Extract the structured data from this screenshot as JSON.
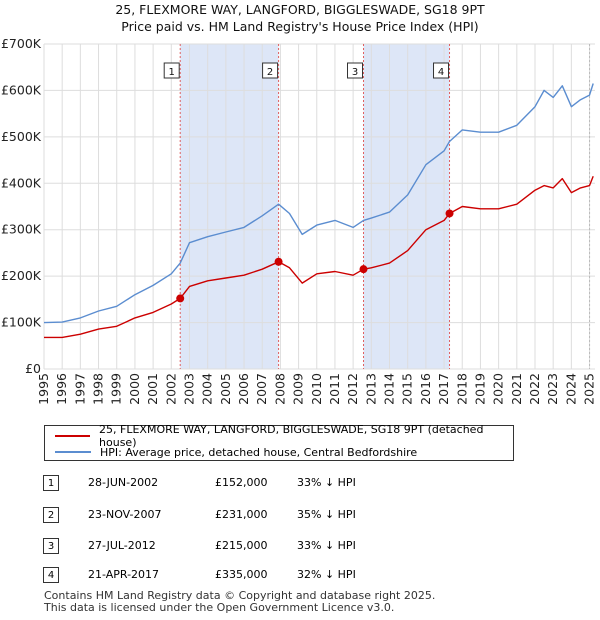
{
  "title_line1": "25, FLEXMORE WAY, LANGFORD, BIGGLESWADE, SG18 9PT",
  "title_line2": "Price paid vs. HM Land Registry's House Price Index (HPI)",
  "colors": {
    "property_line": "#cc0000",
    "hpi_line": "#5b8dd0",
    "shade": "#dde6f7",
    "marker_line": "#e06060",
    "grid": "#dddddd"
  },
  "legend": {
    "property_label": "25, FLEXMORE WAY, LANGFORD, BIGGLESWADE, SG18 9PT (detached house)",
    "hpi_label": "HPI: Average price, detached house, Central Bedfordshire"
  },
  "transactions": [
    {
      "num": "1",
      "date": "28-JUN-2002",
      "price": "£152,000",
      "hpi": "33% ↓ HPI"
    },
    {
      "num": "2",
      "date": "23-NOV-2007",
      "price": "£231,000",
      "hpi": "35% ↓ HPI"
    },
    {
      "num": "3",
      "date": "27-JUL-2012",
      "price": "£215,000",
      "hpi": "33% ↓ HPI"
    },
    {
      "num": "4",
      "date": "21-APR-2017",
      "price": "£335,000",
      "hpi": "32% ↓ HPI"
    }
  ],
  "footer": {
    "line1": "Contains HM Land Registry data © Copyright and database right 2025.",
    "line2": "This data is licensed under the Open Government Licence v3.0."
  },
  "chart_data": {
    "type": "line",
    "title": "25, FLEXMORE WAY, LANGFORD, BIGGLESWADE, SG18 9PT",
    "subtitle": "Price paid vs. HM Land Registry's House Price Index (HPI)",
    "xlabel": "",
    "ylabel": "",
    "xlim": [
      1995,
      2025.3
    ],
    "ylim": [
      0,
      700000
    ],
    "y_ticks": [
      0,
      100000,
      200000,
      300000,
      400000,
      500000,
      600000,
      700000
    ],
    "y_tick_labels": [
      "£0",
      "£100K",
      "£200K",
      "£300K",
      "£400K",
      "£500K",
      "£600K",
      "£700K"
    ],
    "x_ticks": [
      1995,
      1996,
      1997,
      1998,
      1999,
      2000,
      2001,
      2002,
      2003,
      2004,
      2005,
      2006,
      2007,
      2008,
      2009,
      2010,
      2011,
      2012,
      2013,
      2014,
      2015,
      2016,
      2017,
      2018,
      2019,
      2020,
      2021,
      2022,
      2023,
      2024,
      2025
    ],
    "x_tick_labels": [
      "1995",
      "1996",
      "1997",
      "1998",
      "1999",
      "2000",
      "2001",
      "2002",
      "2003",
      "2004",
      "2005",
      "2006",
      "2007",
      "2008",
      "2009",
      "2010",
      "2011",
      "2012",
      "2013",
      "2014",
      "2015",
      "2016",
      "2017",
      "2018",
      "2019",
      "2020",
      "2021",
      "2022",
      "2023",
      "2024",
      "2025"
    ],
    "grid": true,
    "shaded_periods": [
      [
        2002.49,
        2007.9
      ],
      [
        2012.57,
        2017.3
      ]
    ],
    "sale_markers": [
      {
        "label": "1",
        "x": 2002.49,
        "y": 152000
      },
      {
        "label": "2",
        "x": 2007.9,
        "y": 231000
      },
      {
        "label": "3",
        "x": 2012.57,
        "y": 215000
      },
      {
        "label": "4",
        "x": 2017.3,
        "y": 335000
      }
    ],
    "series": [
      {
        "name": "25, FLEXMORE WAY, LANGFORD, BIGGLESWADE, SG18 9PT (detached house)",
        "x": [
          1995,
          1996,
          1997,
          1998,
          1999,
          2000,
          2001,
          2002,
          2002.49,
          2003,
          2004,
          2005,
          2006,
          2007,
          2007.9,
          2008.5,
          2009.2,
          2010,
          2011,
          2012,
          2012.57,
          2013,
          2014,
          2015,
          2016,
          2017,
          2017.3,
          2018,
          2019,
          2020,
          2021,
          2022,
          2022.5,
          2023,
          2023.5,
          2024,
          2024.5,
          2025,
          2025.2
        ],
        "y": [
          68000,
          68000,
          75000,
          86000,
          92000,
          110000,
          122000,
          140000,
          152000,
          178000,
          190000,
          196000,
          202000,
          215000,
          231000,
          218000,
          185000,
          205000,
          210000,
          202000,
          215000,
          218000,
          228000,
          255000,
          300000,
          320000,
          335000,
          350000,
          345000,
          345000,
          355000,
          385000,
          395000,
          390000,
          410000,
          380000,
          390000,
          395000,
          415000
        ]
      },
      {
        "name": "HPI: Average price, detached house, Central Bedfordshire",
        "x": [
          1995,
          1996,
          1997,
          1998,
          1999,
          2000,
          2001,
          2002,
          2002.49,
          2003,
          2004,
          2005,
          2006,
          2007,
          2007.9,
          2008.5,
          2009.2,
          2010,
          2011,
          2012,
          2012.57,
          2013,
          2014,
          2015,
          2016,
          2017,
          2017.3,
          2018,
          2019,
          2020,
          2021,
          2022,
          2022.5,
          2023,
          2023.5,
          2024,
          2024.5,
          2025,
          2025.2
        ],
        "y": [
          100000,
          101000,
          110000,
          125000,
          135000,
          160000,
          180000,
          205000,
          228000,
          272000,
          285000,
          295000,
          305000,
          330000,
          355000,
          335000,
          290000,
          310000,
          320000,
          305000,
          320000,
          325000,
          338000,
          375000,
          440000,
          470000,
          490000,
          515000,
          510000,
          510000,
          525000,
          565000,
          600000,
          585000,
          610000,
          565000,
          580000,
          590000,
          615000
        ]
      }
    ]
  }
}
